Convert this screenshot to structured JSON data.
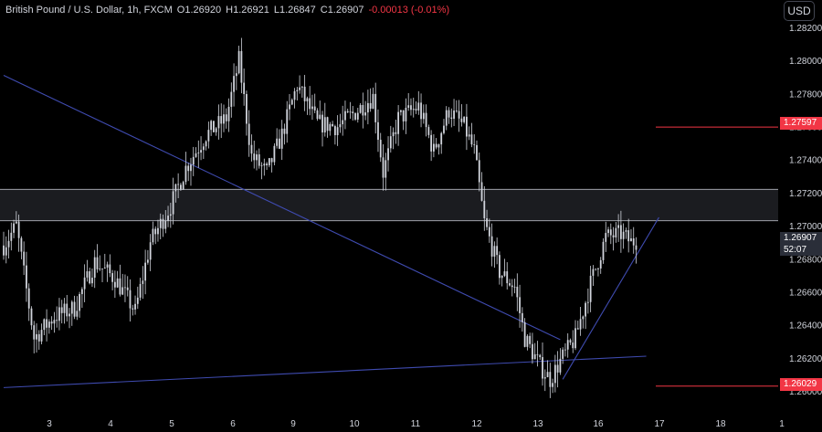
{
  "header": {
    "symbol": "British Pound / U.S. Dollar, 1h, FXCM",
    "open_label": "O",
    "open": "1.26920",
    "high_label": "H",
    "high": "1.26921",
    "low_label": "L",
    "low": "1.26847",
    "close_label": "C",
    "close": "1.26907",
    "change": "-0.00013 (-0.01%)"
  },
  "currency_button": "USD",
  "price_tags": {
    "resistance": "1.27597",
    "last_price": "1.26907",
    "countdown": "52:07",
    "support": "1.26029"
  },
  "colors": {
    "background": "#000000",
    "candle": "#d1d4dc",
    "trendline": "#3f4bb0",
    "level_line": "#f23645",
    "zone_border": "#b2b5be",
    "tag_red": "#f23645"
  },
  "chart_data": {
    "type": "candlestick",
    "symbol": "GBPUSD",
    "timeframe": "1h",
    "y_ticks": [
      1.282,
      1.28,
      1.278,
      1.276,
      1.274,
      1.272,
      1.27,
      1.268,
      1.266,
      1.264,
      1.262,
      1.26
    ],
    "y_tick_labels": [
      "1.28200",
      "1.28000",
      "1.27800",
      "1.27600",
      "1.27400",
      "1.27200",
      "1.27000",
      "1.26800",
      "1.26600",
      "1.26400",
      "1.26200",
      "1.26000"
    ],
    "x_tick_labels": [
      "3",
      "4",
      "5",
      "6",
      "9",
      "10",
      "11",
      "12",
      "13",
      "16",
      "17",
      "18",
      "1"
    ],
    "ylim": [
      1.2585,
      1.2825
    ],
    "n_bars": 180,
    "close_anchors": [
      [
        0,
        1.2688
      ],
      [
        5,
        1.27
      ],
      [
        12,
        1.2632
      ],
      [
        20,
        1.2645
      ],
      [
        28,
        1.265
      ],
      [
        36,
        1.2678
      ],
      [
        44,
        1.2668
      ],
      [
        52,
        1.2648
      ],
      [
        58,
        1.269
      ],
      [
        66,
        1.2712
      ],
      [
        72,
        1.2735
      ],
      [
        80,
        1.2755
      ],
      [
        88,
        1.2765
      ],
      [
        93,
        1.28
      ],
      [
        98,
        1.2742
      ],
      [
        104,
        1.2732
      ],
      [
        110,
        1.2755
      ],
      [
        116,
        1.2785
      ],
      [
        124,
        1.2762
      ],
      [
        132,
        1.276
      ],
      [
        140,
        1.277
      ],
      [
        146,
        1.2778
      ],
      [
        150,
        1.2732
      ],
      [
        156,
        1.2765
      ],
      [
        164,
        1.2772
      ],
      [
        170,
        1.2745
      ],
      [
        176,
        1.277
      ],
      [
        182,
        1.276
      ],
      [
        186,
        1.2745
      ],
      [
        190,
        1.2702
      ],
      [
        196,
        1.2672
      ],
      [
        202,
        1.2663
      ],
      [
        206,
        1.2632
      ],
      [
        212,
        1.2615
      ],
      [
        216,
        1.2607
      ],
      [
        220,
        1.2618
      ],
      [
        226,
        1.2632
      ],
      [
        232,
        1.2665
      ],
      [
        238,
        1.2693
      ],
      [
        244,
        1.2695
      ],
      [
        248,
        1.269
      ],
      [
        250,
        1.2691
      ]
    ],
    "resistance_zone": [
      1.2703,
      1.2722
    ],
    "horizontal_levels": [
      1.27597,
      1.26029
    ],
    "trendlines": [
      {
        "from": [
          0,
          1.2791
        ],
        "to": [
          220,
          1.2631
        ]
      },
      {
        "from": [
          0,
          1.2602
        ],
        "to": [
          254,
          1.2621
        ]
      },
      {
        "from": [
          221,
          1.2607
        ],
        "to": [
          259,
          1.2705
        ]
      }
    ]
  }
}
